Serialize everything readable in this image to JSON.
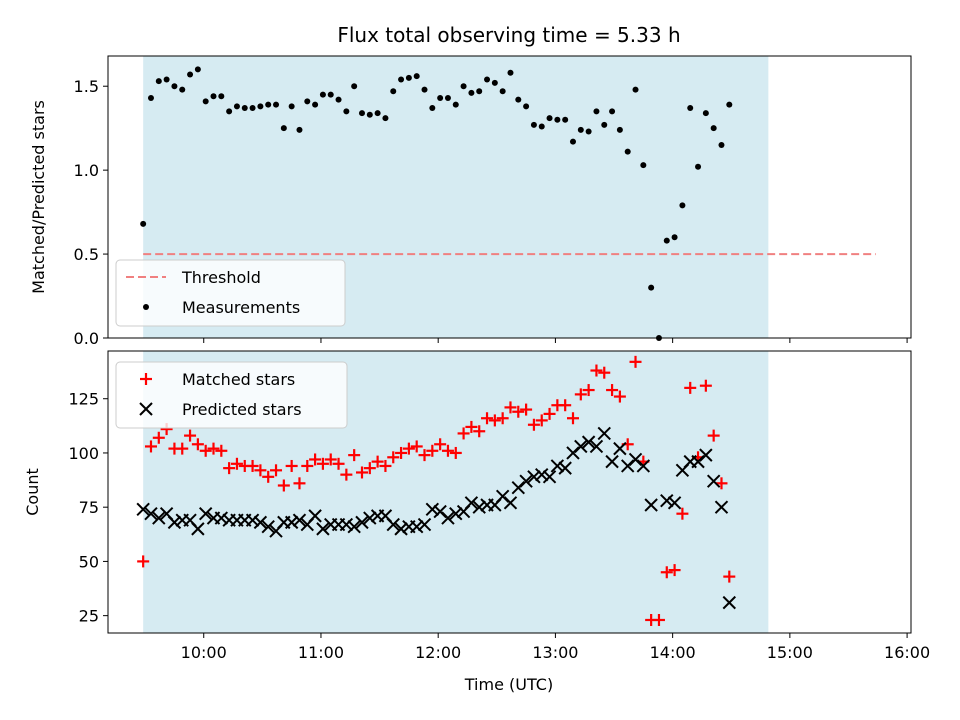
{
  "chart_data": {
    "type": "scatter",
    "title": "Flux total observing time = 5.33 h",
    "shaded_interval": {
      "start": "09:29",
      "end": "14:49",
      "color": "#add8e6"
    },
    "x_ticks": [
      "10:00",
      "11:00",
      "12:00",
      "13:00",
      "14:00",
      "15:00",
      "16:00"
    ],
    "xlabel": "Time (UTC)",
    "xlim": [
      "09:11",
      "16:02"
    ],
    "panels": [
      {
        "name": "ratio",
        "ylabel": "Matched/Predicted stars",
        "ylim": [
          0,
          1.68
        ],
        "y_ticks": [
          "0.0",
          "0.5",
          "1.0",
          "1.5"
        ],
        "legend_position": "lower-left",
        "threshold": {
          "name": "Threshold",
          "value": 0.5,
          "x_start": "09:29",
          "x_end": "15:44",
          "color": "#f08080"
        },
        "series": [
          {
            "name": "Measurements",
            "color": "#000000",
            "marker": "dot",
            "points": [
              [
                "09:29",
                0.68
              ],
              [
                "09:33",
                1.43
              ],
              [
                "09:37",
                1.53
              ],
              [
                "09:41",
                1.54
              ],
              [
                "09:45",
                1.5
              ],
              [
                "09:49",
                1.48
              ],
              [
                "09:53",
                1.57
              ],
              [
                "09:57",
                1.6
              ],
              [
                "10:01",
                1.41
              ],
              [
                "10:05",
                1.44
              ],
              [
                "10:09",
                1.44
              ],
              [
                "10:13",
                1.35
              ],
              [
                "10:17",
                1.38
              ],
              [
                "10:21",
                1.37
              ],
              [
                "10:25",
                1.37
              ],
              [
                "10:29",
                1.38
              ],
              [
                "10:33",
                1.39
              ],
              [
                "10:37",
                1.39
              ],
              [
                "10:41",
                1.25
              ],
              [
                "10:45",
                1.38
              ],
              [
                "10:49",
                1.24
              ],
              [
                "10:53",
                1.41
              ],
              [
                "10:57",
                1.39
              ],
              [
                "11:01",
                1.45
              ],
              [
                "11:05",
                1.45
              ],
              [
                "11:09",
                1.42
              ],
              [
                "11:13",
                1.35
              ],
              [
                "11:17",
                1.5
              ],
              [
                "11:21",
                1.34
              ],
              [
                "11:25",
                1.33
              ],
              [
                "11:29",
                1.34
              ],
              [
                "11:33",
                1.31
              ],
              [
                "11:37",
                1.47
              ],
              [
                "11:41",
                1.54
              ],
              [
                "11:45",
                1.55
              ],
              [
                "11:49",
                1.56
              ],
              [
                "11:53",
                1.48
              ],
              [
                "11:57",
                1.37
              ],
              [
                "12:01",
                1.43
              ],
              [
                "12:05",
                1.43
              ],
              [
                "12:09",
                1.39
              ],
              [
                "12:13",
                1.5
              ],
              [
                "12:17",
                1.46
              ],
              [
                "12:21",
                1.47
              ],
              [
                "12:25",
                1.54
              ],
              [
                "12:29",
                1.52
              ],
              [
                "12:33",
                1.47
              ],
              [
                "12:37",
                1.58
              ],
              [
                "12:41",
                1.42
              ],
              [
                "12:45",
                1.38
              ],
              [
                "12:49",
                1.27
              ],
              [
                "12:53",
                1.26
              ],
              [
                "12:57",
                1.31
              ],
              [
                "13:01",
                1.3
              ],
              [
                "13:05",
                1.3
              ],
              [
                "13:09",
                1.17
              ],
              [
                "13:13",
                1.24
              ],
              [
                "13:17",
                1.23
              ],
              [
                "13:21",
                1.35
              ],
              [
                "13:25",
                1.27
              ],
              [
                "13:29",
                1.35
              ],
              [
                "13:33",
                1.24
              ],
              [
                "13:37",
                1.11
              ],
              [
                "13:41",
                1.48
              ],
              [
                "13:45",
                1.03
              ],
              [
                "13:49",
                0.3
              ],
              [
                "13:53",
                0.0
              ],
              [
                "13:57",
                0.58
              ],
              [
                "14:01",
                0.6
              ],
              [
                "14:05",
                0.79
              ],
              [
                "14:09",
                1.37
              ],
              [
                "14:13",
                1.02
              ],
              [
                "14:17",
                1.34
              ],
              [
                "14:21",
                1.25
              ],
              [
                "14:25",
                1.15
              ],
              [
                "14:29",
                1.39
              ]
            ]
          }
        ]
      },
      {
        "name": "counts",
        "ylabel": "Count",
        "ylim": [
          17,
          147
        ],
        "y_ticks": [
          "25",
          "50",
          "75",
          "100",
          "125"
        ],
        "legend_position": "upper-left",
        "series": [
          {
            "name": "Matched stars",
            "color": "#ff0000",
            "marker": "plus",
            "points": [
              [
                "09:29",
                50
              ],
              [
                "09:33",
                103
              ],
              [
                "09:37",
                107
              ],
              [
                "09:41",
                111
              ],
              [
                "09:45",
                102
              ],
              [
                "09:49",
                102
              ],
              [
                "09:53",
                108
              ],
              [
                "09:57",
                104
              ],
              [
                "10:01",
                101
              ],
              [
                "10:05",
                102
              ],
              [
                "10:09",
                101
              ],
              [
                "10:13",
                93
              ],
              [
                "10:17",
                95
              ],
              [
                "10:21",
                94
              ],
              [
                "10:25",
                94
              ],
              [
                "10:29",
                92
              ],
              [
                "10:33",
                89
              ],
              [
                "10:37",
                92
              ],
              [
                "10:41",
                85
              ],
              [
                "10:45",
                94
              ],
              [
                "10:49",
                86
              ],
              [
                "10:53",
                94
              ],
              [
                "10:57",
                97
              ],
              [
                "11:01",
                95
              ],
              [
                "11:05",
                97
              ],
              [
                "11:09",
                95
              ],
              [
                "11:13",
                90
              ],
              [
                "11:17",
                99
              ],
              [
                "11:21",
                91
              ],
              [
                "11:25",
                93
              ],
              [
                "11:29",
                96
              ],
              [
                "11:33",
                94
              ],
              [
                "11:37",
                98
              ],
              [
                "11:41",
                100
              ],
              [
                "11:45",
                102
              ],
              [
                "11:49",
                103
              ],
              [
                "11:53",
                99
              ],
              [
                "11:57",
                101
              ],
              [
                "12:01",
                104
              ],
              [
                "12:05",
                101
              ],
              [
                "12:09",
                100
              ],
              [
                "12:13",
                109
              ],
              [
                "12:17",
                112
              ],
              [
                "12:21",
                110
              ],
              [
                "12:25",
                116
              ],
              [
                "12:29",
                115
              ],
              [
                "12:33",
                116
              ],
              [
                "12:37",
                121
              ],
              [
                "12:41",
                119
              ],
              [
                "12:45",
                120
              ],
              [
                "12:49",
                113
              ],
              [
                "12:53",
                115
              ],
              [
                "12:57",
                118
              ],
              [
                "13:01",
                122
              ],
              [
                "13:05",
                122
              ],
              [
                "13:09",
                116
              ],
              [
                "13:13",
                127
              ],
              [
                "13:17",
                129
              ],
              [
                "13:21",
                138
              ],
              [
                "13:25",
                137
              ],
              [
                "13:29",
                129
              ],
              [
                "13:33",
                126
              ],
              [
                "13:37",
                104
              ],
              [
                "13:41",
                142
              ],
              [
                "13:45",
                96
              ],
              [
                "13:49",
                23
              ],
              [
                "13:53",
                23
              ],
              [
                "13:57",
                45
              ],
              [
                "14:01",
                46
              ],
              [
                "14:05",
                72
              ],
              [
                "14:09",
                130
              ],
              [
                "14:13",
                98
              ],
              [
                "14:17",
                131
              ],
              [
                "14:21",
                108
              ],
              [
                "14:25",
                86
              ],
              [
                "14:29",
                43
              ]
            ]
          },
          {
            "name": "Predicted stars",
            "color": "#000000",
            "marker": "x",
            "points": [
              [
                "09:29",
                74
              ],
              [
                "09:33",
                72
              ],
              [
                "09:37",
                70
              ],
              [
                "09:41",
                72
              ],
              [
                "09:45",
                68
              ],
              [
                "09:49",
                69
              ],
              [
                "09:53",
                69
              ],
              [
                "09:57",
                65
              ],
              [
                "10:01",
                72
              ],
              [
                "10:05",
                70
              ],
              [
                "10:09",
                70
              ],
              [
                "10:13",
                69
              ],
              [
                "10:17",
                69
              ],
              [
                "10:21",
                69
              ],
              [
                "10:25",
                69
              ],
              [
                "10:29",
                68
              ],
              [
                "10:33",
                66
              ],
              [
                "10:37",
                64
              ],
              [
                "10:41",
                68
              ],
              [
                "10:45",
                68
              ],
              [
                "10:49",
                69
              ],
              [
                "10:53",
                67
              ],
              [
                "10:57",
                71
              ],
              [
                "11:01",
                65
              ],
              [
                "11:05",
                67
              ],
              [
                "11:09",
                67
              ],
              [
                "11:13",
                67
              ],
              [
                "11:17",
                66
              ],
              [
                "11:21",
                68
              ],
              [
                "11:25",
                70
              ],
              [
                "11:29",
                71
              ],
              [
                "11:33",
                71
              ],
              [
                "11:37",
                67
              ],
              [
                "11:41",
                65
              ],
              [
                "11:45",
                66
              ],
              [
                "11:49",
                66
              ],
              [
                "11:53",
                67
              ],
              [
                "11:57",
                74
              ],
              [
                "12:01",
                73
              ],
              [
                "12:05",
                70
              ],
              [
                "12:09",
                72
              ],
              [
                "12:13",
                73
              ],
              [
                "12:17",
                77
              ],
              [
                "12:21",
                75
              ],
              [
                "12:25",
                76
              ],
              [
                "12:29",
                76
              ],
              [
                "12:33",
                80
              ],
              [
                "12:37",
                77
              ],
              [
                "12:41",
                84
              ],
              [
                "12:45",
                87
              ],
              [
                "12:49",
                89
              ],
              [
                "12:53",
                90
              ],
              [
                "12:57",
                89
              ],
              [
                "13:01",
                94
              ],
              [
                "13:05",
                93
              ],
              [
                "13:09",
                100
              ],
              [
                "13:13",
                103
              ],
              [
                "13:17",
                105
              ],
              [
                "13:21",
                103
              ],
              [
                "13:25",
                109
              ],
              [
                "13:29",
                96
              ],
              [
                "13:33",
                102
              ],
              [
                "13:37",
                94
              ],
              [
                "13:41",
                97
              ],
              [
                "13:45",
                94
              ],
              [
                "13:49",
                76
              ],
              [
                "13:57",
                78
              ],
              [
                "14:01",
                77
              ],
              [
                "14:05",
                92
              ],
              [
                "14:09",
                96
              ],
              [
                "14:13",
                96
              ],
              [
                "14:17",
                99
              ],
              [
                "14:21",
                87
              ],
              [
                "14:25",
                75
              ],
              [
                "14:29",
                31
              ]
            ]
          }
        ]
      }
    ]
  }
}
